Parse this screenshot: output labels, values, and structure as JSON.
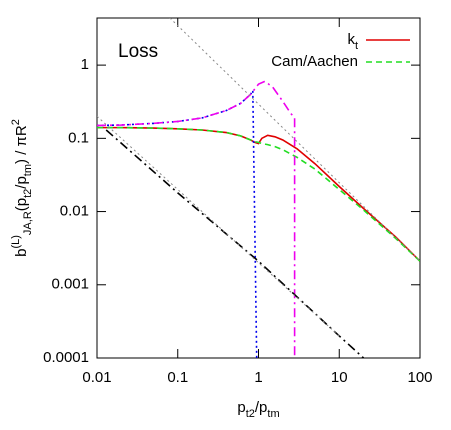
{
  "chart_data": {
    "type": "line",
    "annotation": "Loss",
    "xlabel": [
      {
        "text": "p"
      },
      {
        "text": "t2",
        "pos": "sub"
      },
      {
        "text": "/p"
      },
      {
        "text": "tm",
        "pos": "sub"
      }
    ],
    "ylabel": [
      {
        "text": "b"
      },
      {
        "text": "(L)",
        "pos": "sup"
      },
      {
        "text": "JA,R",
        "pos": "sub"
      },
      {
        "text": "(p"
      },
      {
        "text": "t2",
        "pos": "sub"
      },
      {
        "text": "/p"
      },
      {
        "text": "tm",
        "pos": "sub"
      },
      {
        "text": ") / πR"
      },
      {
        "text": "2",
        "pos": "sup"
      }
    ],
    "log_x": true,
    "log_y": true,
    "xlim": [
      0.01,
      100
    ],
    "ylim": [
      0.0001,
      4.4
    ],
    "xticks": [
      0.01,
      0.1,
      1,
      10,
      100
    ],
    "yticks": [
      0.0001,
      0.001,
      0.01,
      0.1,
      1
    ],
    "legend": "upper right",
    "series": [
      {
        "name": [
          {
            "text": "k"
          },
          {
            "text": "t",
            "pos": "sub"
          }
        ],
        "color": "#e00000",
        "dash": "solid",
        "x": [
          0.01,
          0.02,
          0.05,
          0.1,
          0.2,
          0.4,
          0.6,
          0.8,
          0.9,
          1.0,
          1.1,
          1.3,
          1.6,
          2,
          3,
          5,
          10,
          20,
          50,
          100
        ],
        "values": [
          0.14,
          0.14,
          0.138,
          0.135,
          0.13,
          0.12,
          0.108,
          0.095,
          0.088,
          0.085,
          0.1,
          0.11,
          0.105,
          0.095,
          0.072,
          0.045,
          0.022,
          0.011,
          0.0045,
          0.0021
        ]
      },
      {
        "name": [
          {
            "text": "Cam/Aachen"
          }
        ],
        "color": "#22dd22",
        "dash": "dashed",
        "x": [
          0.01,
          0.02,
          0.05,
          0.1,
          0.2,
          0.4,
          0.6,
          0.8,
          0.9,
          1.0,
          1.1,
          1.3,
          1.6,
          2,
          3,
          5,
          10,
          20,
          50,
          100
        ],
        "values": [
          0.14,
          0.14,
          0.138,
          0.135,
          0.13,
          0.12,
          0.108,
          0.095,
          0.09,
          0.088,
          0.085,
          0.082,
          0.077,
          0.07,
          0.055,
          0.038,
          0.02,
          0.0105,
          0.0043,
          0.0021
        ]
      },
      {
        "color": "#0000ee",
        "dash": "dotted",
        "x": [
          0.01,
          0.02,
          0.05,
          0.1,
          0.2,
          0.4,
          0.6,
          0.8,
          0.85,
          0.95
        ],
        "values": [
          0.15,
          0.152,
          0.16,
          0.17,
          0.19,
          0.24,
          0.3,
          0.4,
          0.45,
          0.0001
        ]
      },
      {
        "color": "#ee00ee",
        "dash": "dashdot",
        "x": [
          0.01,
          0.02,
          0.05,
          0.1,
          0.2,
          0.4,
          0.6,
          0.8,
          1.0,
          1.2,
          1.5,
          2,
          2.5,
          2.8,
          2.8
        ],
        "values": [
          0.15,
          0.152,
          0.16,
          0.17,
          0.19,
          0.24,
          0.3,
          0.4,
          0.55,
          0.6,
          0.5,
          0.32,
          0.22,
          0.19,
          0.0001
        ]
      },
      {
        "color": "#000000",
        "dash": "dashdot",
        "x": [
          0.013,
          0.1,
          1,
          10,
          20
        ],
        "values": [
          0.13,
          0.018,
          0.0021,
          0.0002,
          0.0001
        ]
      },
      {
        "color": "#888888",
        "dash": "dotted",
        "x": [
          0.08,
          100
        ],
        "values": [
          4.4,
          0.0021
        ]
      },
      {
        "color": "#888888",
        "dash": "dotted",
        "x": [
          0.01,
          10
        ],
        "values": [
          0.2,
          0.0002
        ]
      }
    ]
  }
}
